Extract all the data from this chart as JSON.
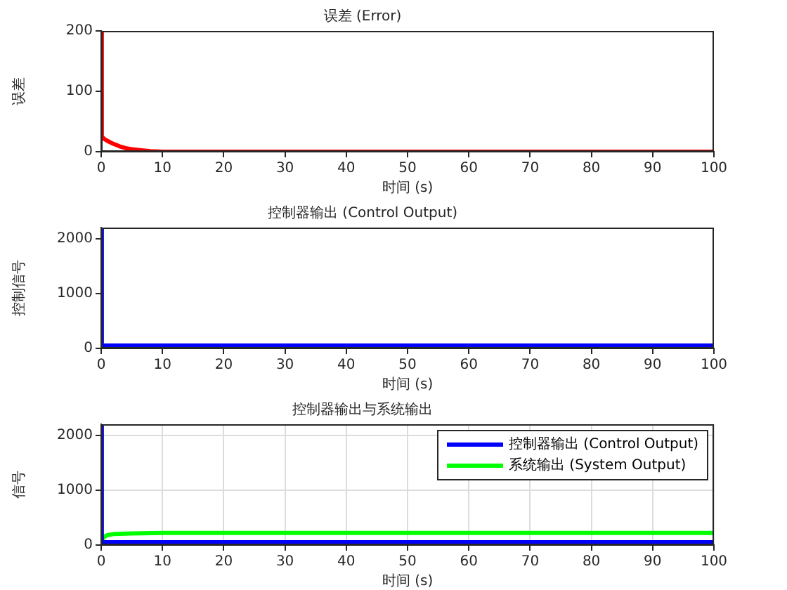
{
  "chart_data": [
    {
      "type": "line",
      "title": "误差 (Error)",
      "xlabel": "时间 (s)",
      "ylabel": "误差",
      "xlim": [
        0,
        100
      ],
      "xticks": [
        0,
        10,
        20,
        30,
        40,
        50,
        60,
        70,
        80,
        90,
        100
      ],
      "ylim": [
        0,
        200
      ],
      "yticks": [
        0,
        100,
        200
      ],
      "grid": false,
      "legend": false,
      "series": [
        {
          "color": "#ff0000",
          "x": [
            0,
            0.1,
            0.5,
            1,
            2,
            3,
            4,
            5,
            6,
            8,
            10,
            15,
            100
          ],
          "values": [
            200,
            25,
            21,
            18,
            13,
            9,
            6,
            4,
            3,
            1,
            0,
            0,
            0
          ]
        }
      ]
    },
    {
      "type": "line",
      "title": "控制器输出 (Control Output)",
      "xlabel": "时间 (s)",
      "ylabel": "控制信号",
      "xlim": [
        0,
        100
      ],
      "xticks": [
        0,
        10,
        20,
        30,
        40,
        50,
        60,
        70,
        80,
        90,
        100
      ],
      "ylim": [
        0,
        2200
      ],
      "yticks": [
        0,
        1000,
        2000
      ],
      "grid": false,
      "legend": false,
      "series": [
        {
          "color": "#0000ff",
          "x": [
            0,
            0.1,
            0.3,
            100
          ],
          "values": [
            2200,
            50,
            50,
            50
          ]
        }
      ]
    },
    {
      "type": "line",
      "title": "控制器输出与系统输出",
      "xlabel": "时间 (s)",
      "ylabel": "信号",
      "xlim": [
        0,
        100
      ],
      "xticks": [
        0,
        10,
        20,
        30,
        40,
        50,
        60,
        70,
        80,
        90,
        100
      ],
      "ylim": [
        0,
        2200
      ],
      "yticks": [
        0,
        1000,
        2000
      ],
      "grid": true,
      "legend": "top right",
      "series": [
        {
          "name": "控制器输出 (Control Output)",
          "color": "#0000ff",
          "x": [
            0,
            0.1,
            0.3,
            100
          ],
          "values": [
            2200,
            50,
            50,
            50
          ]
        },
        {
          "name": "系统输出 (System Output)",
          "color": "#00ff00",
          "x": [
            0,
            0.2,
            0.5,
            1,
            2,
            5,
            10,
            100
          ],
          "values": [
            0,
            120,
            150,
            180,
            200,
            210,
            220,
            220
          ]
        }
      ]
    }
  ]
}
